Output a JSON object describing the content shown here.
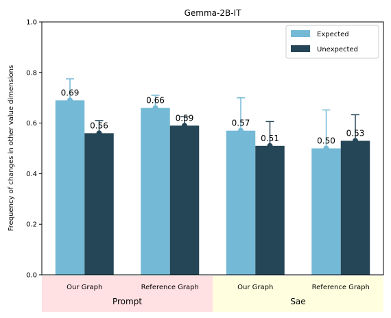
{
  "chart_data": {
    "type": "bar",
    "title": "Gemma-2B-IT",
    "xlabel": "",
    "ylabel": "Frequency of changes in other value dimensions",
    "ylim": [
      0,
      1.0
    ],
    "yticks": [
      "0.0",
      "0.2",
      "0.4",
      "0.6",
      "0.8",
      "1.0"
    ],
    "grid": false,
    "legend_position": "top-right",
    "categories": [
      "Our Graph",
      "Reference Graph",
      "Our Graph",
      "Reference Graph"
    ],
    "groups": [
      {
        "label": "Prompt",
        "categories": [
          0,
          1
        ],
        "color": "#ffe0e3"
      },
      {
        "label": "Sae",
        "categories": [
          2,
          3
        ],
        "color": "#ffffe0"
      }
    ],
    "series": [
      {
        "name": "Expected",
        "color": "#74b9d6",
        "values": [
          0.69,
          0.66,
          0.57,
          0.5
        ],
        "labels": [
          "0.69",
          "0.66",
          "0.57",
          "0.50"
        ],
        "error_upper": [
          0.775,
          0.71,
          0.7,
          0.652
        ]
      },
      {
        "name": "Unexpected",
        "color": "#254656",
        "values": [
          0.56,
          0.59,
          0.51,
          0.53
        ],
        "labels": [
          "0.56",
          "0.59",
          "0.51",
          "0.53"
        ],
        "error_upper": [
          0.61,
          0.625,
          0.606,
          0.633
        ]
      }
    ]
  }
}
